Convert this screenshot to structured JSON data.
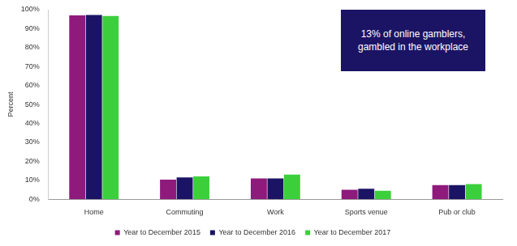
{
  "chart_data": {
    "type": "bar",
    "annotation": "13% of online gamblers, gambled in the workplace",
    "y_label": "Percent",
    "categories": [
      "Home",
      "Commuting",
      "Work",
      "Sports venue",
      "Pub or club"
    ],
    "series": [
      {
        "name": "Year to December 2015",
        "color": "#8e1a7c",
        "values": [
          97,
          10.3,
          11,
          5,
          7.5
        ]
      },
      {
        "name": "Year to December 2016",
        "color": "#1b1464",
        "values": [
          97.2,
          11.5,
          11,
          5.5,
          7.5
        ]
      },
      {
        "name": "Year to December 2017",
        "color": "#3ccf3c",
        "values": [
          96.7,
          12,
          13,
          4.5,
          8
        ]
      }
    ],
    "ylim": [
      0,
      100
    ],
    "yticks": [
      {
        "value": 0,
        "label": "0%"
      },
      {
        "value": 10,
        "label": "10%"
      },
      {
        "value": 20,
        "label": "20%"
      },
      {
        "value": 30,
        "label": "30%"
      },
      {
        "value": 40,
        "label": "40%"
      },
      {
        "value": 50,
        "label": "50%"
      },
      {
        "value": 60,
        "label": "60%"
      },
      {
        "value": 70,
        "label": "70%"
      },
      {
        "value": 80,
        "label": "80%"
      },
      {
        "value": 90,
        "label": "90%"
      },
      {
        "value": 100,
        "label": "100%"
      }
    ],
    "grid": false,
    "legend": "bottom"
  }
}
